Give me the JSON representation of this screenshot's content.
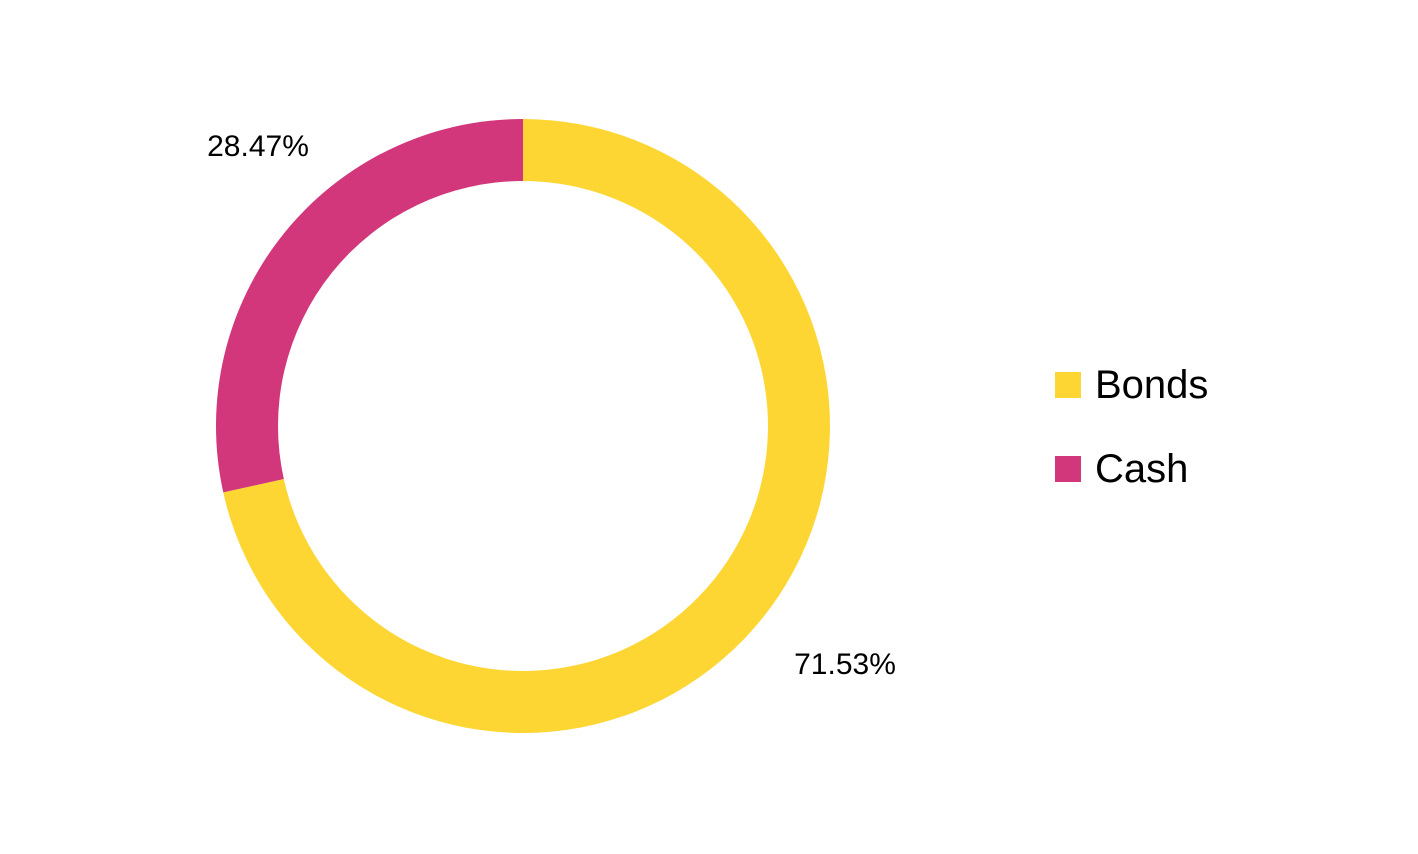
{
  "chart_data": {
    "type": "pie",
    "variant": "donut",
    "start": "top",
    "direction": "clockwise",
    "legend_position": "right",
    "slices": [
      {
        "name": "Bonds",
        "value": 71.53,
        "label": "71.53%",
        "color": "#FED633"
      },
      {
        "name": "Cash",
        "value": 28.47,
        "label": "28.47%",
        "color": "#D1377A"
      }
    ]
  }
}
